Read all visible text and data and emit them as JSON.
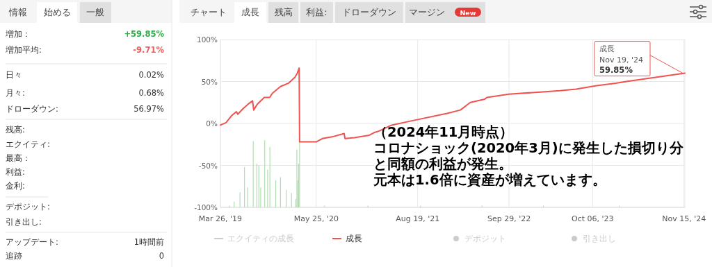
{
  "chart_data": [
    {
      "type": "other",
      "annotations": [
        "情報",
        "始める",
        "一般",
        "増加：",
        "+59.85%",
        "増加平均:",
        "-9.71%",
        "日々",
        "0.02%",
        "月々:",
        "0.68%",
        "ドローダウン:",
        "56.97%",
        "残高:",
        "エクイティ:",
        "最高：",
        "利益:",
        "金利:",
        "デポジット:",
        "引き出し:",
        "アップデート:",
        "1時間前",
        "追跡",
        "0"
      ]
    },
    {
      "type": "line",
      "xlim": [
        "2019-03-26",
        "2024-11-19"
      ],
      "xticks": [
        {
          "value": "2019-03-26",
          "label": "Mar 26, '19"
        },
        {
          "value": "2020-05-25",
          "label": "May 25, '20"
        },
        {
          "value": "2021-08-19",
          "label": "Aug 19, '21"
        },
        {
          "value": "2022-09-29",
          "label": "Sep 29, '22"
        },
        {
          "value": "2023-10-06",
          "label": "Oct 06, '23"
        },
        {
          "value": "2024-11-15",
          "label": "Nov 15, '24"
        }
      ],
      "ylim": [
        -100,
        100
      ],
      "yticks": [
        {
          "value": 100,
          "label": "100%"
        },
        {
          "value": 50,
          "label": "50%"
        },
        {
          "value": 0,
          "label": "0%"
        },
        {
          "value": -50,
          "label": "-50%"
        },
        {
          "value": -100,
          "label": "-100%"
        }
      ],
      "grid": true,
      "legend": "bottom",
      "series": [
        {
          "type": "bar",
          "color": "#b3dcb3",
          "x": [
            "2019-05-05",
            "2019-05-26",
            "2019-06-21",
            "2019-07-11",
            "2019-07-25",
            "2019-08-19",
            "2019-09-04",
            "2019-09-13",
            "2019-09-21",
            "2019-10-09",
            "2019-10-22",
            "2019-11-01",
            "2019-11-27",
            "2019-12-18",
            "2020-01-13",
            "2020-02-05",
            "2020-02-24",
            "2020-02-29",
            "2020-03-04",
            "2020-03-08",
            "2020-03-12",
            "2020-07-01",
            "2021-01-10",
            "2021-09-01",
            "2022-06-01",
            "2023-03-01",
            "2024-02-01"
          ],
          "base": [
            -100,
            -100,
            -100,
            -100,
            -100,
            -100,
            -100,
            -100,
            -100,
            -100,
            -100,
            -100,
            -100,
            -100,
            -100,
            -100,
            -100,
            -100,
            -100,
            -100,
            -100,
            -100,
            -100,
            -100,
            -100,
            -100,
            -100
          ],
          "values": [
            2,
            7,
            18,
            48,
            24,
            79,
            52,
            50,
            24,
            80,
            45,
            72,
            32,
            36,
            21,
            17,
            10,
            69,
            32,
            52,
            78,
            2,
            2,
            2,
            2,
            2,
            2
          ]
        },
        {
          "name": "成長",
          "color": "#ef5350",
          "x": [
            "2019-03-26",
            "2019-04-20",
            "2019-05-14",
            "2019-06-05",
            "2019-06-11",
            "2019-07-06",
            "2019-07-27",
            "2019-08-16",
            "2019-08-21",
            "2019-09-06",
            "2019-10-07",
            "2019-10-31",
            "2019-11-12",
            "2019-12-18",
            "2020-01-23",
            "2020-02-20",
            "2020-03-02",
            "2020-03-10",
            "2020-03-12",
            "2020-05-25",
            "2020-06-21",
            "2020-08-04",
            "2020-09-26",
            "2020-09-30",
            "2020-11-11",
            "2021-01-16",
            "2021-02-06",
            "2021-03-01",
            "2021-04-25",
            "2021-07-21",
            "2021-12-28",
            "2022-02-25",
            "2022-04-10",
            "2022-06-13",
            "2022-06-23",
            "2022-09-29",
            "2023-01-25",
            "2023-05-14",
            "2023-07-25",
            "2023-10-24",
            "2024-01-17",
            "2024-03-04",
            "2024-11-19"
          ],
          "values": [
            -2,
            1,
            9,
            14,
            11,
            18,
            23,
            27,
            16,
            23,
            31,
            31,
            36,
            44,
            48,
            55,
            60,
            66,
            -22,
            -22,
            -18,
            -16,
            -12,
            -18,
            -17,
            -14,
            -11,
            -9,
            -2,
            3,
            12,
            16,
            25,
            29,
            31,
            35,
            37,
            39,
            41,
            45,
            48,
            50,
            59.85
          ]
        }
      ],
      "annotations": [
        "チャート",
        "成長",
        "残高",
        "利益:",
        "ドローダウン",
        "マージン",
        "New",
        "（2024年11月時点）",
        "コロナショック(2020年3月)に発生した損切り分",
        "と同額の利益が発生。",
        "元本は1.6倍に資産が増えています。",
        {
          "text": "成長\nNov 19, '24\n59.85%",
          "x": "2024-11-19",
          "y": 59.85
        },
        "エクイティの成長",
        "デポジット",
        "引き出し"
      ]
    }
  ]
}
